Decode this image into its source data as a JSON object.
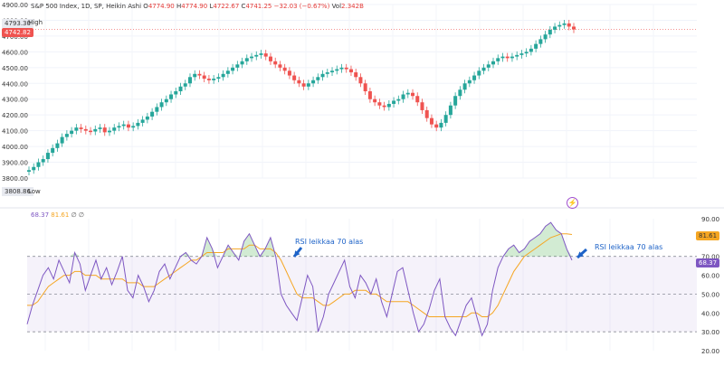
{
  "header": {
    "symbol": "S&P 500 Index, 1D, SP, Heikin Ashi",
    "ohlc_prefix_o": "O",
    "open": "4774.90",
    "ohlc_prefix_h": "H",
    "high": "4774.90",
    "ohlc_prefix_l": "L",
    "low": "4722.67",
    "ohlc_prefix_c": "C",
    "close": "4741.25",
    "change": "−32.03 (−0.67%)",
    "vol_prefix": "Vol",
    "volume": "2.342B"
  },
  "price_panel": {
    "current_price": "4742.82",
    "high_value": "4793.30",
    "high_label": "High",
    "low_value": "3808.86",
    "low_label": "Low",
    "y_ticks": [
      "4900.00",
      "4800.00",
      "4700.00",
      "4600.00",
      "4500.00",
      "4400.00",
      "4300.00",
      "4200.00",
      "4100.00",
      "4000.00",
      "3900.00",
      "3800.00"
    ]
  },
  "rsi_panel": {
    "legend_rsi": "68.37",
    "legend_ma": "81.61",
    "legend_extra": "∅ ∅",
    "rsi_tag": "68.37",
    "ma_tag": "81.61",
    "y_ticks": [
      "90.00",
      "80.00",
      "70.00",
      "60.00",
      "50.00",
      "40.00",
      "30.00",
      "20.00"
    ],
    "annotations": [
      "RSI leikkaa 70 alas",
      "RSI leikkaa 70 alas"
    ]
  },
  "colors": {
    "up": "#26a69a",
    "down": "#ef5350",
    "rsi_line": "#7e57c2",
    "rsi_ma": "#f5a623",
    "annotation": "#1e63c8"
  },
  "chart_data": [
    {
      "type": "line",
      "title": "S&P 500 Index, 1D, SP, Heikin Ashi",
      "ylim": [
        3800,
        4900
      ],
      "series": [
        {
          "name": "S&P 500",
          "values": [
            3850,
            3870,
            3900,
            3920,
            3960,
            3990,
            4020,
            4060,
            4080,
            4100,
            4120,
            4110,
            4100,
            4095,
            4110,
            4120,
            4090,
            4100,
            4120,
            4130,
            4140,
            4120,
            4130,
            4150,
            4170,
            4190,
            4220,
            4250,
            4280,
            4300,
            4330,
            4350,
            4380,
            4400,
            4440,
            4460,
            4450,
            4430,
            4420,
            4430,
            4440,
            4460,
            4480,
            4500,
            4520,
            4540,
            4560,
            4570,
            4580,
            4590,
            4570,
            4540,
            4520,
            4500,
            4480,
            4450,
            4420,
            4400,
            4380,
            4400,
            4420,
            4440,
            4460,
            4470,
            4480,
            4490,
            4500,
            4490,
            4470,
            4440,
            4400,
            4350,
            4300,
            4280,
            4260,
            4250,
            4270,
            4290,
            4300,
            4330,
            4340,
            4320,
            4280,
            4230,
            4180,
            4140,
            4120,
            4150,
            4200,
            4260,
            4320,
            4360,
            4400,
            4420,
            4450,
            4480,
            4500,
            4520,
            4540,
            4560,
            4570,
            4560,
            4570,
            4580,
            4590,
            4600,
            4620,
            4650,
            4680,
            4710,
            4740,
            4760,
            4770,
            4780,
            4760,
            4742
          ]
        }
      ]
    },
    {
      "type": "line",
      "title": "",
      "ylim": [
        20,
        90
      ],
      "series": [
        {
          "name": "",
          "values": [
            34,
            44,
            52,
            60,
            64,
            58,
            68,
            62,
            56,
            72,
            66,
            52,
            60,
            68,
            58,
            64,
            55,
            62,
            70,
            52,
            48,
            60,
            54,
            46,
            52,
            62,
            66,
            58,
            64,
            70,
            72,
            68,
            66,
            70,
            80,
            74,
            64,
            70,
            76,
            72,
            68,
            78,
            82,
            76,
            70,
            74,
            80,
            70,
            50,
            44,
            40,
            36,
            48,
            60,
            54,
            30,
            38,
            50,
            56,
            62,
            68,
            54,
            48,
            60,
            56,
            50,
            58,
            46,
            38,
            50,
            62,
            64,
            52,
            40,
            30,
            34,
            42,
            52,
            58,
            38,
            32,
            28,
            36,
            44,
            48,
            38,
            28,
            34,
            52,
            64,
            70,
            74,
            76,
            72,
            74,
            78,
            80,
            82,
            86,
            88,
            84,
            82,
            74,
            68
          ]
        },
        {
          "name": "",
          "values": [
            44,
            44,
            46,
            50,
            54,
            56,
            58,
            60,
            60,
            62,
            62,
            60,
            60,
            60,
            58,
            58,
            58,
            58,
            58,
            56,
            56,
            56,
            54,
            54,
            54,
            56,
            58,
            60,
            62,
            64,
            66,
            68,
            68,
            70,
            72,
            72,
            72,
            72,
            74,
            74,
            74,
            74,
            76,
            76,
            74,
            74,
            74,
            72,
            68,
            62,
            56,
            50,
            48,
            48,
            48,
            46,
            44,
            44,
            46,
            48,
            50,
            50,
            52,
            52,
            52,
            50,
            50,
            48,
            46,
            46,
            46,
            46,
            46,
            44,
            42,
            40,
            38,
            38,
            38,
            38,
            38,
            38,
            38,
            38,
            40,
            40,
            38,
            38,
            40,
            44,
            50,
            56,
            62,
            66,
            70,
            72,
            74,
            76,
            78,
            80,
            81,
            82,
            82,
            81.61
          ]
        }
      ]
    }
  ]
}
